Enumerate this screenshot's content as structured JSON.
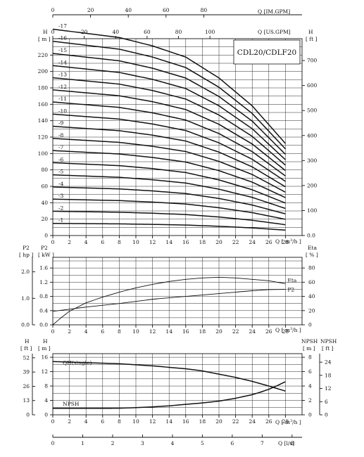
{
  "chart_data": [
    {
      "type": "line",
      "title": "CDL20/CDLF20",
      "top_axes": [
        {
          "label": "Q [IM.GPM]",
          "ticks": [
            "0",
            "20",
            "40",
            "60",
            "80"
          ]
        },
        {
          "label": "Q [US.GPM]",
          "ticks": [
            "0",
            "20",
            "40",
            "60",
            "80",
            "100"
          ]
        }
      ],
      "xlabel": "Q [m³/h]",
      "ylabel_left": "H [m]",
      "ylabel_right": "H [ft]",
      "xlim": [
        0,
        30
      ],
      "ylim": [
        0,
        240
      ],
      "x_ticks": [
        "0",
        "2",
        "4",
        "6",
        "8",
        "10",
        "12",
        "14",
        "16",
        "18",
        "20",
        "22",
        "24",
        "26",
        "28"
      ],
      "y_ticks_left": [
        "0",
        "20",
        "40",
        "60",
        "80",
        "100",
        "120",
        "140",
        "160",
        "180",
        "200",
        "220"
      ],
      "y_ticks_right": [
        "0.0",
        "100",
        "200",
        "300",
        "400",
        "500",
        "600",
        "700"
      ],
      "curve_labels": [
        "-1",
        "-2",
        "-3",
        "-4",
        "-5",
        "-6",
        "-7",
        "-8",
        "-9",
        "-10",
        "-11",
        "-12",
        "-13",
        "-14",
        "-15",
        "-16",
        "-17"
      ],
      "stages": [
        1,
        2,
        3,
        4,
        5,
        6,
        7,
        8,
        9,
        10,
        11,
        12,
        13,
        14,
        15,
        16,
        17
      ],
      "single_stage_head_m": {
        "x": [
          0,
          4,
          8,
          12,
          16,
          20,
          24,
          28
        ],
        "y": [
          14.8,
          14.5,
          14.2,
          13.6,
          12.8,
          11.3,
          9.3,
          6.6
        ]
      }
    },
    {
      "type": "line",
      "xlabel": "Q [m³/h]",
      "ylabel_left_outer": "P2 [hp]",
      "ylabel_left_inner": "P2 [kW]",
      "ylabel_right": "Eta [%]",
      "xlim": [
        0,
        30
      ],
      "x_ticks": [
        "0",
        "2",
        "4",
        "6",
        "8",
        "10",
        "12",
        "14",
        "16",
        "18",
        "20",
        "22",
        "24",
        "26",
        "28"
      ],
      "y_ticks_kw": [
        "0.0",
        "0.4",
        "0.8",
        "1.2",
        "1.6"
      ],
      "y_ticks_hp": [
        "0.0",
        "1.0",
        "2.0"
      ],
      "y_ticks_eta": [
        "0",
        "20",
        "40",
        "60",
        "80"
      ],
      "series": [
        {
          "name": "Eta",
          "x": [
            0,
            1,
            2,
            4,
            6,
            8,
            10,
            12,
            14,
            16,
            18,
            20,
            22,
            24,
            26,
            28
          ],
          "y": [
            0,
            10,
            19,
            31,
            39,
            46,
            52,
            57,
            61,
            64,
            66,
            67,
            66,
            64,
            62,
            58
          ]
        },
        {
          "name": "P2",
          "x": [
            0,
            2,
            4,
            6,
            8,
            10,
            12,
            14,
            16,
            18,
            20,
            22,
            24,
            26,
            28
          ],
          "y": [
            0.38,
            0.44,
            0.5,
            0.55,
            0.6,
            0.66,
            0.72,
            0.76,
            0.8,
            0.84,
            0.88,
            0.92,
            0.96,
            0.99,
            1.0
          ]
        }
      ]
    },
    {
      "type": "line",
      "xlabel": "Q [m³/h]",
      "x2label": "Q [l/s]",
      "ylabel_left_outer": "H [ft]",
      "ylabel_left_inner": "H [m]",
      "ylabel_right_inner": "NPSH [m]",
      "ylabel_right_outer": "NPSH [ft]",
      "xlim": [
        0,
        30
      ],
      "x_ticks": [
        "0",
        "2",
        "4",
        "6",
        "8",
        "10",
        "12",
        "14",
        "16",
        "18",
        "20",
        "22",
        "24",
        "26",
        "28"
      ],
      "x2_ticks": [
        "0",
        "1",
        "2",
        "3",
        "4",
        "5",
        "6",
        "7",
        "8"
      ],
      "y_ticks_m": [
        "0",
        "4",
        "8",
        "12",
        "16"
      ],
      "y_ticks_ft": [
        "0",
        "13",
        "26",
        "39",
        "52"
      ],
      "y_ticks_npsh_m": [
        "0",
        "2",
        "4",
        "6",
        "8"
      ],
      "y_ticks_npsh_ft": [
        "0",
        "6",
        "12",
        "18",
        "24"
      ],
      "series": [
        {
          "name": "QH(single)",
          "x": [
            0,
            4,
            8,
            12,
            16,
            18,
            20,
            22,
            24,
            26,
            28
          ],
          "y": [
            14.8,
            14.5,
            14.2,
            13.6,
            12.8,
            12.2,
            11.3,
            10.4,
            9.3,
            8.0,
            6.6
          ]
        },
        {
          "name": "NPSH",
          "x": [
            0,
            2,
            4,
            6,
            8,
            10,
            12,
            14,
            16,
            18,
            20,
            22,
            24,
            25,
            26,
            27,
            28
          ],
          "y": [
            0.9,
            0.9,
            0.9,
            0.9,
            0.92,
            1.0,
            1.1,
            1.25,
            1.45,
            1.65,
            1.9,
            2.3,
            2.8,
            3.15,
            3.55,
            4.05,
            4.6
          ]
        }
      ]
    }
  ]
}
